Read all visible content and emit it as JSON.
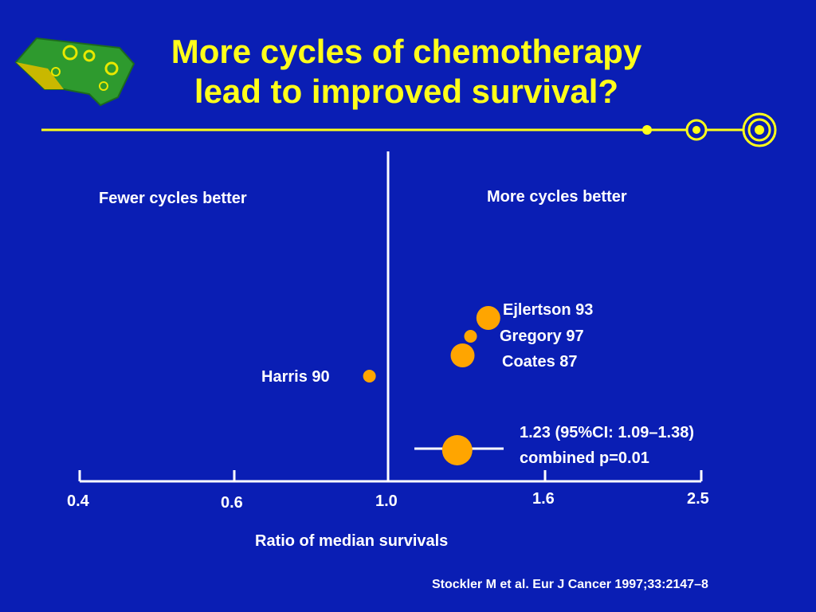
{
  "title": {
    "line1": "More cycles of chemotherapy",
    "line2": "lead to improved survival?"
  },
  "colors": {
    "background": "#0a1eb4",
    "title": "#ffff1a",
    "accent_line": "#ffff1a",
    "text": "#ffffff",
    "marker": "#ffa500"
  },
  "regions": {
    "left": "Fewer cycles better",
    "right": "More cycles better"
  },
  "axis": {
    "xlabel": "Ratio of median survivals",
    "ticks": [
      "0.4",
      "0.6",
      "1.0",
      "1.6",
      "2.5"
    ]
  },
  "citation": "Stockler M et al. Eur J Cancer 1997;33:2147–8",
  "chart_data": {
    "type": "scatter",
    "xlabel": "Ratio of median survivals",
    "x_ticks": [
      0.4,
      0.6,
      1.0,
      1.6,
      2.5
    ],
    "x_scale": "log",
    "reference_line": 1.0,
    "series": [
      {
        "name": "Ejlertson 93",
        "x": 1.35,
        "marker_size": "medium"
      },
      {
        "name": "Gregory 97",
        "x": 1.28,
        "marker_size": "small"
      },
      {
        "name": "Coates 87",
        "x": 1.25,
        "marker_size": "medium"
      },
      {
        "name": "Harris 90",
        "x": 0.94,
        "marker_size": "small"
      }
    ],
    "combined": {
      "estimate": 1.23,
      "ci": [
        1.09,
        1.38
      ],
      "p": 0.01,
      "label_line1": "1.23 (95%CI: 1.09–1.38)",
      "label_line2": "combined p=0.01"
    }
  }
}
